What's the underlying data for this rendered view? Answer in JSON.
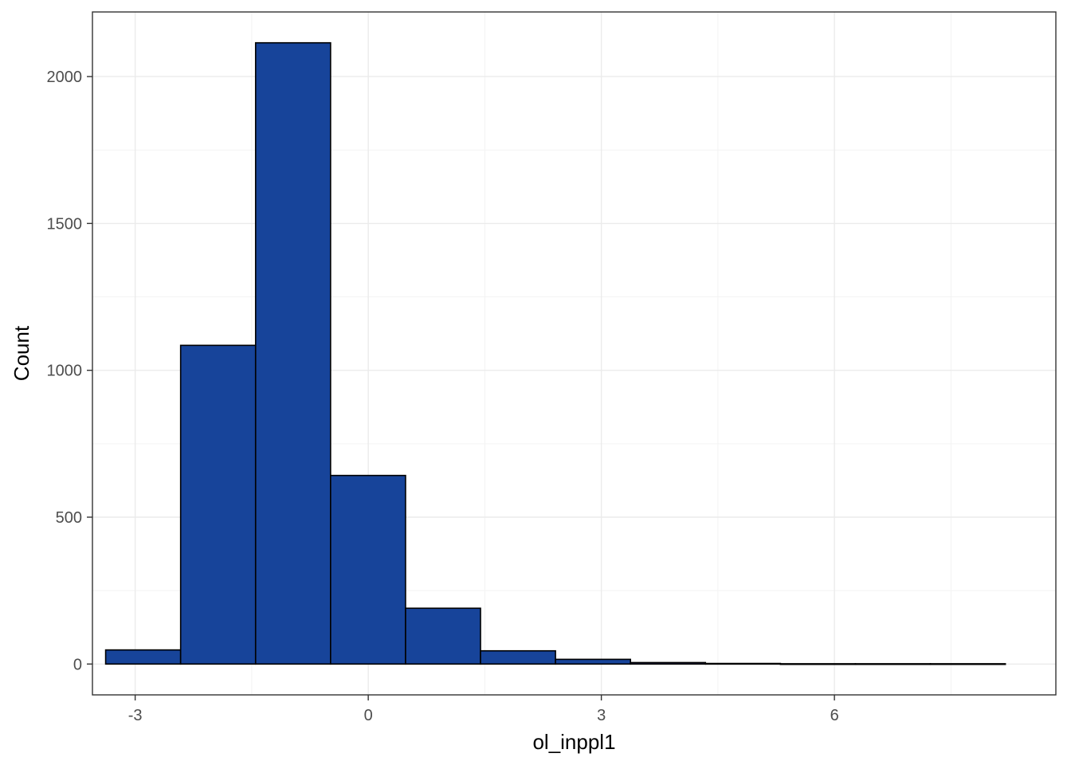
{
  "chart_data": {
    "type": "bar",
    "subtype": "histogram",
    "title": "",
    "xlabel": "ol_inppl1",
    "ylabel": "Count",
    "xlim": [
      -3.55,
      8.85
    ],
    "ylim": [
      -105,
      2220
    ],
    "x_ticks": [
      -3,
      0,
      3,
      6
    ],
    "y_ticks": [
      0,
      500,
      1000,
      1500,
      2000
    ],
    "bin_width": 0.965,
    "bins": [
      {
        "x0": -3.38,
        "x1": -2.415,
        "count": 48
      },
      {
        "x0": -2.415,
        "x1": -1.45,
        "count": 1085
      },
      {
        "x0": -1.45,
        "x1": -0.485,
        "count": 2115
      },
      {
        "x0": -0.485,
        "x1": 0.48,
        "count": 642
      },
      {
        "x0": 0.48,
        "x1": 1.445,
        "count": 190
      },
      {
        "x0": 1.445,
        "x1": 2.41,
        "count": 45
      },
      {
        "x0": 2.41,
        "x1": 3.375,
        "count": 16
      },
      {
        "x0": 3.375,
        "x1": 4.34,
        "count": 5
      },
      {
        "x0": 4.34,
        "x1": 5.305,
        "count": 2
      },
      {
        "x0": 5.305,
        "x1": 6.27,
        "count": 1
      },
      {
        "x0": 6.27,
        "x1": 7.235,
        "count": 1
      },
      {
        "x0": 7.235,
        "x1": 8.2,
        "count": 1
      }
    ],
    "grid": true,
    "legend": "none",
    "colors": {
      "bar_fill": "#17449a",
      "bar_stroke": "#000000",
      "grid_major": "#ebebeb",
      "grid_minor": "#f3f3f3",
      "panel_border": "#333333"
    }
  }
}
